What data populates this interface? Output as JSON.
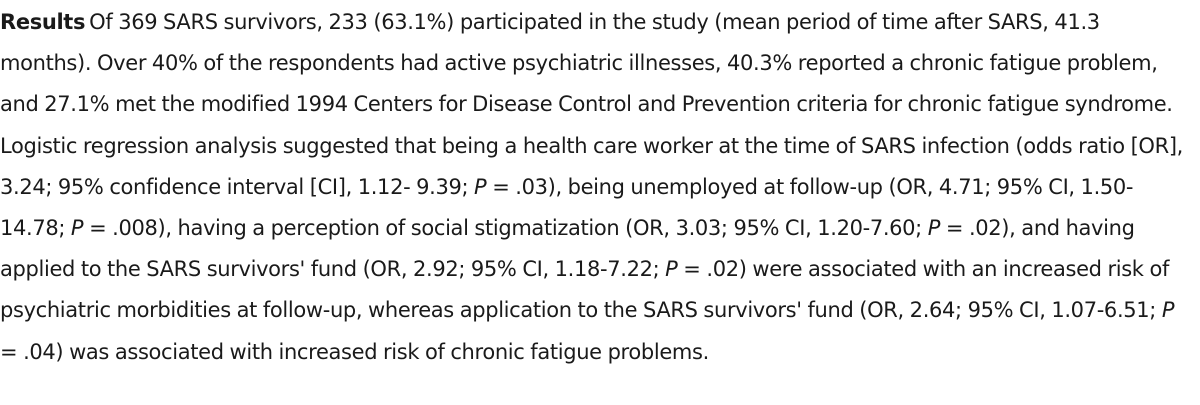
{
  "section": {
    "label": "Results",
    "segments": [
      "Of 369 SARS survivors, 233 (63.1%) participated in the study (mean period of time after SARS, 41.3 months). Over 40% of the respondents had active psychiatric illnesses, 40.3% reported a chronic fatigue problem, and 27.1% met the modified 1994 Centers for Disease Control and Prevention criteria for chronic fatigue syndrome. Logistic regression analysis suggested that being a health care worker at the time of SARS infection (odds ratio [OR], 3.24; 95% confidence interval [CI], 1.12- 9.39; ",
      " = .03), being unemployed at fol­low-up (OR, 4.71; 95% CI, 1.50-14.78; ",
      " = .008), having a perception of social stigmatization (OR, 3.03; 95% CI, 1.20-7.60; ",
      " = .02), and having applied to the SARS survivors' fund (OR, 2.92; 95% CI, 1.18-7.22; ",
      " = .02) were associated with an increased risk of psychiatric morbidities at follow-up, whereas application to the SARS survivors' fund (OR, 2.64; 95% CI, 1.07-6.51; ",
      " = .04) was associated with increased risk of chronic fa­tigue problems."
    ],
    "p_symbol": "P"
  }
}
